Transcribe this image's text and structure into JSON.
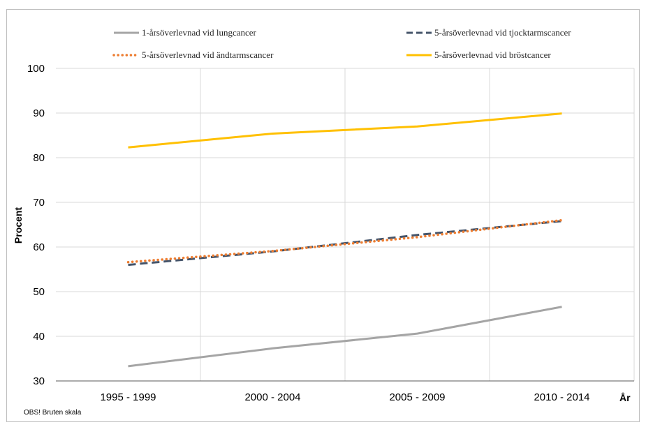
{
  "chart_data": {
    "type": "line",
    "categories": [
      "1995 - 1999",
      "2000 - 2004",
      "2005 - 2009",
      "2010 - 2014"
    ],
    "series": [
      {
        "name": "1-årsöverlevnad vid lungcancer",
        "values": [
          33.3,
          37.3,
          40.6,
          46.6
        ],
        "color": "#a5a5a5",
        "style": "solid"
      },
      {
        "name": "5-årsöverlevnad vid tjocktarmscancer",
        "values": [
          56.0,
          59.0,
          62.7,
          65.8
        ],
        "color": "#44546a",
        "style": "dashed"
      },
      {
        "name": "5-årsöverlevnad vid ändtarmscancer",
        "values": [
          56.6,
          59.1,
          62.2,
          66.0
        ],
        "color": "#ed7d31",
        "style": "dotted"
      },
      {
        "name": "5-årsöverlevnad vid bröstcancer",
        "values": [
          82.3,
          85.4,
          87.0,
          89.9
        ],
        "color": "#ffc000",
        "style": "solid"
      }
    ],
    "xlabel": "År",
    "ylabel": "Procent",
    "ylim": [
      30,
      100
    ],
    "yticks": [
      30,
      40,
      50,
      60,
      70,
      80,
      90,
      100
    ],
    "grid": true,
    "legend_position": "top",
    "note": "OBS! Bruten skala"
  }
}
